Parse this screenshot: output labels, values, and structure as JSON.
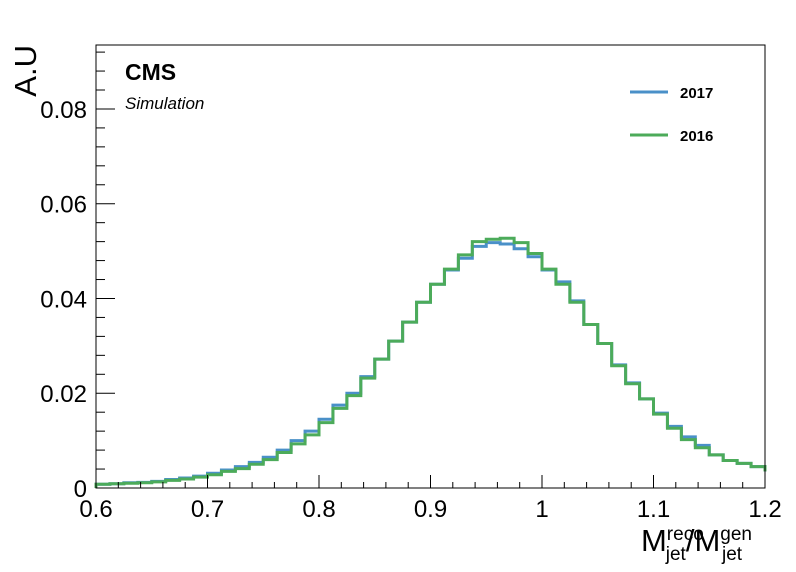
{
  "chart_data": {
    "type": "line",
    "style": "step-histogram",
    "title": "",
    "experiment_label": "CMS",
    "sub_label": "Simulation",
    "xlabel": {
      "base1": "M",
      "sup1": "reco",
      "sub1": "jet",
      "sep": "/",
      "base2": "M",
      "sup2": "gen",
      "sub2": "jet"
    },
    "ylabel": "A.U",
    "xlim": [
      0.6,
      1.2
    ],
    "ylim": [
      0,
      0.0935
    ],
    "grid": false,
    "legend_position": "top-right",
    "x_ticks": [
      "0.6",
      "0.7",
      "0.8",
      "0.9",
      "1",
      "1.1",
      "1.2"
    ],
    "y_ticks": [
      "0",
      "0.02",
      "0.04",
      "0.06",
      "0.08"
    ],
    "bin_edges": [
      0.6,
      0.6125,
      0.625,
      0.6375,
      0.65,
      0.6625,
      0.675,
      0.6875,
      0.7,
      0.7125,
      0.725,
      0.7375,
      0.75,
      0.7625,
      0.775,
      0.7875,
      0.8,
      0.8125,
      0.825,
      0.8375,
      0.85,
      0.8625,
      0.875,
      0.8875,
      0.9,
      0.9125,
      0.925,
      0.9375,
      0.95,
      0.9625,
      0.975,
      0.9875,
      1.0,
      1.0125,
      1.025,
      1.0375,
      1.05,
      1.0625,
      1.075,
      1.0875,
      1.1,
      1.1125,
      1.125,
      1.1375,
      1.15,
      1.1625,
      1.175,
      1.1875,
      1.2
    ],
    "series": [
      {
        "name": "2017",
        "color": "#4a90c8",
        "values": [
          0.0008,
          0.0009,
          0.0011,
          0.0012,
          0.0014,
          0.0018,
          0.0021,
          0.0025,
          0.0031,
          0.0038,
          0.0045,
          0.0054,
          0.0065,
          0.008,
          0.01,
          0.012,
          0.0145,
          0.0175,
          0.02,
          0.0235,
          0.0272,
          0.031,
          0.035,
          0.0392,
          0.043,
          0.046,
          0.0485,
          0.051,
          0.0518,
          0.0515,
          0.0505,
          0.0488,
          0.046,
          0.0435,
          0.0395,
          0.0345,
          0.0305,
          0.026,
          0.0222,
          0.0188,
          0.0158,
          0.013,
          0.0108,
          0.009,
          0.007,
          0.0058,
          0.0052,
          0.0045,
          0.0035
        ]
      },
      {
        "name": "2016",
        "color": "#4cab5a",
        "values": [
          0.0008,
          0.0009,
          0.001,
          0.0011,
          0.0013,
          0.0016,
          0.0019,
          0.0023,
          0.0028,
          0.0035,
          0.0041,
          0.005,
          0.006,
          0.0075,
          0.0093,
          0.0112,
          0.0138,
          0.0168,
          0.0195,
          0.0232,
          0.0272,
          0.031,
          0.035,
          0.0392,
          0.043,
          0.0462,
          0.0492,
          0.052,
          0.0525,
          0.0527,
          0.0518,
          0.0495,
          0.0462,
          0.043,
          0.0392,
          0.0345,
          0.0305,
          0.0258,
          0.022,
          0.0188,
          0.0156,
          0.0126,
          0.0102,
          0.0085,
          0.007,
          0.0058,
          0.0052,
          0.0045,
          0.0035
        ]
      }
    ]
  }
}
